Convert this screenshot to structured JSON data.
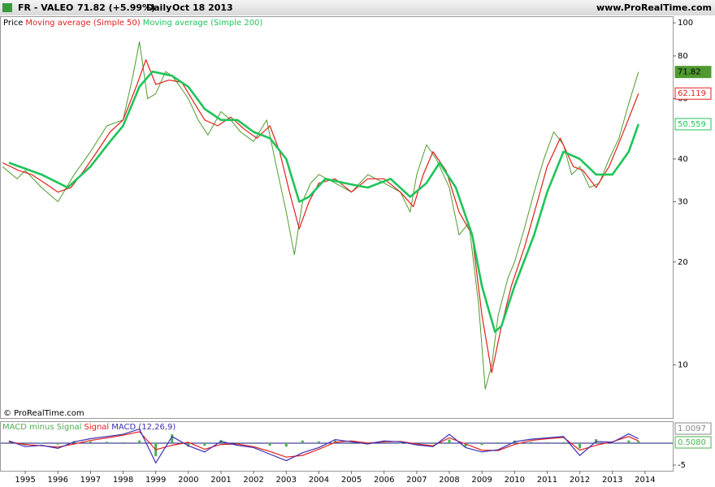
{
  "header": {
    "symbol": "FR - VALEO",
    "quote": "71.82 (+5.99%)",
    "period": "Daily",
    "date": "Oct 18 2013",
    "site": "www.ProRealTime.com"
  },
  "watermark": "© ProRealTime.com",
  "chart_data": [
    {
      "type": "line",
      "log_scale": true,
      "xlim": [
        1994.25,
        2014.85
      ],
      "ylim": [
        7,
        104.5
      ],
      "yticks": [
        10,
        20,
        30,
        40,
        60,
        80,
        100
      ],
      "series": [
        {
          "name": "Price",
          "color": "#4f9a2f",
          "width": 1,
          "x": [
            1994.3,
            1994.75,
            1995.0,
            1995.5,
            1996.0,
            1996.5,
            1997.0,
            1997.5,
            1998.0,
            1998.3,
            1998.5,
            1998.75,
            1999.0,
            1999.3,
            1999.5,
            1999.75,
            2000.0,
            2000.3,
            2000.6,
            2001.0,
            2001.3,
            2001.6,
            2002.0,
            2002.4,
            2002.7,
            2003.0,
            2003.25,
            2003.5,
            2003.75,
            2004.0,
            2004.5,
            2005.0,
            2005.5,
            2006.0,
            2006.5,
            2006.8,
            2007.0,
            2007.3,
            2007.6,
            2008.0,
            2008.3,
            2008.6,
            2008.9,
            2009.1,
            2009.3,
            2009.5,
            2009.8,
            2010.0,
            2010.3,
            2010.6,
            2010.9,
            2011.2,
            2011.5,
            2011.75,
            2012.0,
            2012.3,
            2012.6,
            2012.9,
            2013.2,
            2013.5,
            2013.8
          ],
          "values": [
            38,
            35,
            37,
            33,
            30,
            36,
            42,
            50,
            52,
            70,
            88,
            60,
            62,
            72,
            70,
            65,
            60,
            52,
            47,
            55,
            52,
            48,
            45,
            52,
            38,
            28,
            21,
            30,
            34,
            36,
            34,
            32,
            36,
            34,
            32,
            28,
            36,
            44,
            40,
            33,
            24,
            26,
            15,
            8.5,
            10,
            14,
            18,
            20,
            25,
            32,
            40,
            48,
            44,
            36,
            38,
            33,
            34,
            40,
            46,
            58,
            71.82
          ]
        },
        {
          "name": "Moving average (Simple 50)",
          "color": "#e0201b",
          "width": 1.2,
          "x": [
            1994.3,
            1994.8,
            1995.2,
            1995.6,
            1996.0,
            1996.4,
            1996.8,
            1997.2,
            1997.6,
            1998.0,
            1998.4,
            1998.7,
            1999.0,
            1999.4,
            1999.8,
            2000.1,
            2000.5,
            2000.9,
            2001.3,
            2001.7,
            2002.1,
            2002.5,
            2002.8,
            2003.1,
            2003.4,
            2003.7,
            2004.0,
            2004.5,
            2005.0,
            2005.5,
            2006.0,
            2006.5,
            2006.9,
            2007.2,
            2007.5,
            2007.9,
            2008.3,
            2008.7,
            2009.0,
            2009.3,
            2009.6,
            2009.9,
            2010.3,
            2010.7,
            2011.0,
            2011.4,
            2011.8,
            2012.1,
            2012.5,
            2012.9,
            2013.3,
            2013.8
          ],
          "values": [
            39,
            37,
            36,
            34,
            32,
            33,
            37,
            42,
            48,
            52,
            65,
            78,
            66,
            68,
            67,
            60,
            52,
            50,
            53,
            49,
            46,
            50,
            42,
            32,
            25,
            30,
            34,
            35,
            32,
            35,
            35,
            32,
            29,
            36,
            42,
            37,
            28,
            24,
            14,
            9.5,
            13,
            17,
            22,
            30,
            38,
            46,
            38,
            37,
            33,
            38,
            47,
            62.119
          ]
        },
        {
          "name": "Moving average (Simple 200)",
          "color": "#1fc45a",
          "width": 2.6,
          "x": [
            1994.5,
            1995.5,
            1996.3,
            1997.0,
            1997.6,
            1998.0,
            1998.5,
            1998.9,
            1999.5,
            2000.0,
            2000.5,
            2001.0,
            2001.5,
            2002.0,
            2002.5,
            2003.0,
            2003.4,
            2003.7,
            2004.2,
            2004.8,
            2005.5,
            2006.2,
            2006.8,
            2007.3,
            2007.7,
            2008.2,
            2008.7,
            2009.0,
            2009.4,
            2009.6,
            2010.0,
            2010.6,
            2011.0,
            2011.5,
            2012.0,
            2012.5,
            2013.0,
            2013.5,
            2013.8
          ],
          "values": [
            39,
            36,
            33,
            38,
            45,
            50,
            65,
            72,
            70,
            65,
            56,
            52,
            52,
            48,
            46,
            40,
            30,
            31,
            35,
            34,
            33,
            35,
            31,
            34,
            39,
            33,
            24,
            17,
            12.5,
            13,
            17,
            24,
            32,
            42,
            40,
            36,
            36,
            42,
            50.559
          ]
        }
      ]
    },
    {
      "type": "macd",
      "xlim": [
        1994.25,
        2014.85
      ],
      "ylim": [
        -6.3,
        4.8
      ],
      "yticks": [
        -5
      ],
      "xticks": [
        1995,
        1996,
        1997,
        1998,
        1999,
        2000,
        2001,
        2002,
        2003,
        2004,
        2005,
        2006,
        2007,
        2008,
        2009,
        2010,
        2011,
        2012,
        2013,
        2014
      ],
      "x": [
        1994.5,
        1995,
        1995.5,
        1996,
        1996.5,
        1997,
        1997.5,
        1998,
        1998.5,
        1999,
        1999.5,
        2000,
        2000.5,
        2001,
        2001.5,
        2002,
        2002.5,
        2003,
        2003.5,
        2004,
        2004.5,
        2005,
        2005.5,
        2006,
        2006.5,
        2007,
        2007.5,
        2008,
        2008.5,
        2009,
        2009.5,
        2010,
        2010.5,
        2011,
        2011.5,
        2012,
        2012.5,
        2013,
        2013.5,
        2013.8
      ],
      "series": [
        {
          "name": "MACD minus Signal",
          "color": "#4caf50",
          "kind": "histogram",
          "last_label": "0.5080",
          "values": [
            0.2,
            -0.5,
            0.1,
            -0.3,
            0.5,
            0.4,
            0.3,
            0.2,
            0.6,
            -3.0,
            2.0,
            -0.8,
            -0.6,
            0.7,
            -0.3,
            -0.2,
            -0.6,
            -0.8,
            0.6,
            0.4,
            0.6,
            -0.2,
            -0.2,
            0.2,
            -0.1,
            -0.2,
            -0.2,
            0.8,
            -0.8,
            -0.4,
            0.2,
            0.6,
            0.3,
            0.2,
            0.2,
            -1.2,
            0.9,
            -0.1,
            0.6,
            0.508
          ]
        },
        {
          "name": "Signal",
          "color": "#e0201b",
          "kind": "line",
          "values": [
            0.3,
            -0.3,
            -0.6,
            -0.9,
            -0.2,
            0.6,
            1.2,
            1.8,
            2.6,
            -1.5,
            -0.5,
            0.2,
            -1.4,
            -0.3,
            -0.2,
            -0.8,
            -1.9,
            -3.2,
            -2.8,
            -1.4,
            0.2,
            0.5,
            0.0,
            0.3,
            0.4,
            -0.2,
            -0.6,
            1.2,
            -0.2,
            -1.6,
            -1.7,
            -0.3,
            0.6,
            1.0,
            1.3,
            -1.6,
            -0.5,
            0.3,
            1.5,
            0.5017
          ]
        },
        {
          "name": "MACD (12,26,9)",
          "color": "#3b2fb5",
          "kind": "line",
          "values": [
            0.5,
            -0.8,
            -0.5,
            -1.2,
            0.3,
            1.0,
            1.5,
            2.0,
            3.2,
            -4.5,
            1.5,
            -0.6,
            -2.0,
            0.4,
            -0.5,
            -1.0,
            -2.5,
            -4.0,
            -2.2,
            -1.0,
            0.8,
            0.3,
            -0.2,
            0.5,
            0.3,
            -0.4,
            -0.8,
            2.0,
            -1.0,
            -2.0,
            -1.5,
            0.3,
            0.9,
            1.2,
            1.5,
            -2.8,
            0.4,
            0.2,
            2.1,
            1.0097
          ]
        }
      ]
    }
  ]
}
